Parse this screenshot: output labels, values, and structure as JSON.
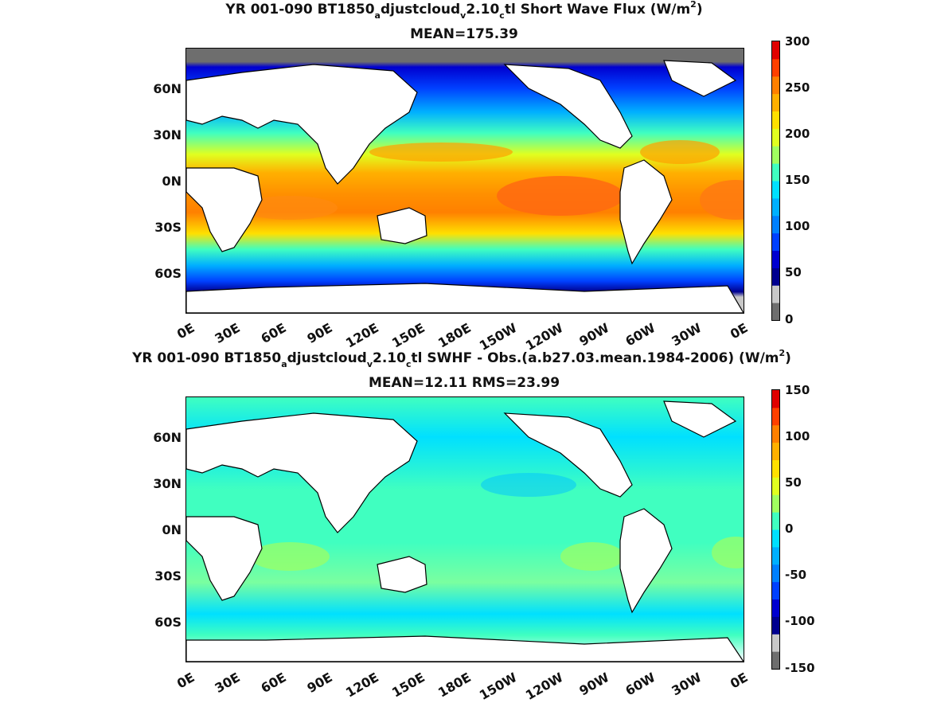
{
  "panels": [
    {
      "title_parts": [
        "YR 001-090 BT1850",
        "a",
        "djustcloud",
        "v",
        "2.10",
        "c",
        "tl  Short Wave Flux (W/m",
        "2",
        ")"
      ],
      "mean_label": "MEAN=175.39",
      "colorbar_ticks": [
        "300",
        "250",
        "200",
        "150",
        "100",
        "50",
        "0"
      ]
    },
    {
      "title_parts": [
        "YR 001-090 BT1850",
        "a",
        "djustcloud",
        "v",
        "2.10",
        "c",
        "tl SWHF - Obs.(a.b27.03.mean.1984-2006) (W/m",
        "2",
        ")"
      ],
      "mean_label": "MEAN=12.11 RMS=23.99",
      "colorbar_ticks": [
        "150",
        "100",
        "50",
        "0",
        "-50",
        "-100",
        "-150"
      ]
    }
  ],
  "lat_labels": [
    "60N",
    "30N",
    "0N",
    "30S",
    "60S"
  ],
  "lon_labels": [
    "0E",
    "30E",
    "60E",
    "90E",
    "120E",
    "150E",
    "180E",
    "150W",
    "120W",
    "90W",
    "60W",
    "30W",
    "0E"
  ],
  "colors": {
    "colormap": [
      "#6e6e6e",
      "#c8c8c8",
      "#00008f",
      "#0000d0",
      "#0040ff",
      "#0080ff",
      "#00b0ff",
      "#00e0ff",
      "#40ffc0",
      "#a0ff60",
      "#e0ff20",
      "#ffe000",
      "#ffb000",
      "#ff8000",
      "#ff4000",
      "#e00000"
    ],
    "land": "#ffffff",
    "coast": "#000000"
  }
}
